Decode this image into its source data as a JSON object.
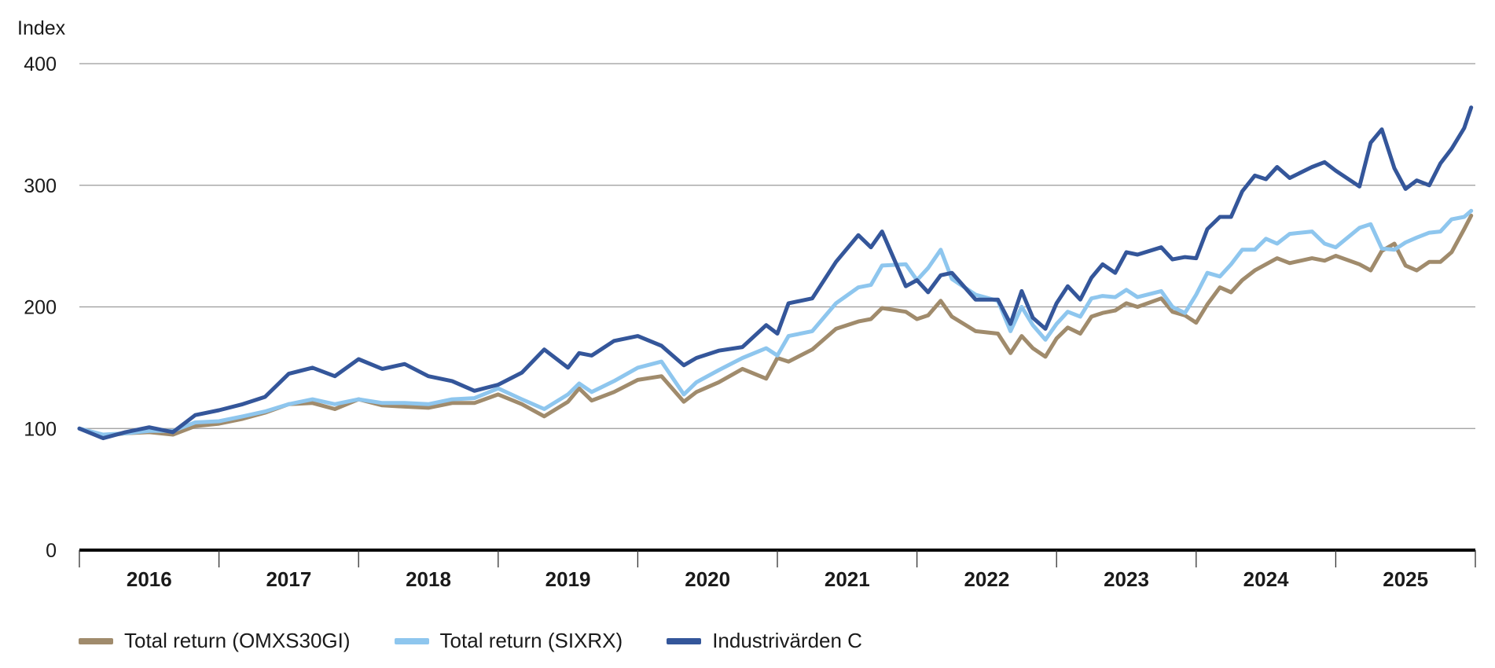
{
  "chart_data": {
    "type": "line",
    "ylabel": "Index",
    "ylim": [
      0,
      400
    ],
    "yticks": [
      "0",
      "100",
      "200",
      "300",
      "400"
    ],
    "ytick_values": [
      0,
      100,
      200,
      300,
      400
    ],
    "xlim": [
      2016.0,
      2026.0
    ],
    "xticks": [
      "2016",
      "2017",
      "2018",
      "2019",
      "2020",
      "2021",
      "2022",
      "2023",
      "2024",
      "2025"
    ],
    "grid": true,
    "legend_position": "bottom-left",
    "x": [
      2016.0,
      2016.17,
      2016.33,
      2016.5,
      2016.67,
      2016.83,
      2017.0,
      2017.17,
      2017.33,
      2017.5,
      2017.67,
      2017.83,
      2018.0,
      2018.17,
      2018.33,
      2018.5,
      2018.67,
      2018.83,
      2019.0,
      2019.17,
      2019.33,
      2019.5,
      2019.58,
      2019.67,
      2019.83,
      2020.0,
      2020.17,
      2020.33,
      2020.42,
      2020.58,
      2020.75,
      2020.92,
      2021.0,
      2021.08,
      2021.25,
      2021.42,
      2021.58,
      2021.67,
      2021.75,
      2021.92,
      2022.0,
      2022.08,
      2022.17,
      2022.25,
      2022.42,
      2022.58,
      2022.67,
      2022.75,
      2022.83,
      2022.92,
      2023.0,
      2023.08,
      2023.17,
      2023.25,
      2023.33,
      2023.42,
      2023.5,
      2023.58,
      2023.75,
      2023.83,
      2023.92,
      2024.0,
      2024.08,
      2024.17,
      2024.25,
      2024.33,
      2024.42,
      2024.5,
      2024.58,
      2024.67,
      2024.83,
      2024.92,
      2025.0,
      2025.17,
      2025.25,
      2025.33,
      2025.42,
      2025.5,
      2025.58,
      2025.67,
      2025.75,
      2025.83,
      2025.92,
      2025.97
    ],
    "series": [
      {
        "name": "Total return (OMXS30GI)",
        "color": "#a08b6c",
        "values": [
          100,
          94,
          96,
          97,
          95,
          102,
          104,
          108,
          113,
          120,
          121,
          116,
          124,
          119,
          118,
          117,
          121,
          121,
          128,
          120,
          110,
          122,
          133,
          123,
          130,
          140,
          143,
          122,
          130,
          138,
          149,
          141,
          158,
          155,
          165,
          182,
          188,
          190,
          199,
          196,
          190,
          193,
          205,
          192,
          180,
          178,
          162,
          176,
          166,
          159,
          174,
          183,
          178,
          192,
          195,
          197,
          203,
          200,
          207,
          196,
          193,
          187,
          202,
          216,
          212,
          222,
          230,
          235,
          240,
          236,
          240,
          238,
          242,
          235,
          230,
          246,
          252,
          234,
          230,
          237,
          237,
          245,
          264,
          275
        ]
      },
      {
        "name": "Total return (SIXRX)",
        "color": "#8ec6ee",
        "values": [
          100,
          95,
          96,
          98,
          98,
          105,
          106,
          110,
          114,
          120,
          124,
          120,
          124,
          121,
          121,
          120,
          124,
          125,
          133,
          124,
          116,
          128,
          137,
          130,
          139,
          150,
          155,
          128,
          138,
          148,
          158,
          166,
          160,
          176,
          180,
          203,
          216,
          218,
          234,
          235,
          222,
          232,
          247,
          223,
          210,
          205,
          180,
          200,
          185,
          173,
          186,
          196,
          192,
          207,
          209,
          208,
          214,
          208,
          213,
          200,
          195,
          210,
          228,
          225,
          235,
          247,
          247,
          256,
          252,
          260,
          262,
          252,
          249,
          265,
          268,
          248,
          247,
          253,
          257,
          261,
          262,
          272,
          274,
          279
        ]
      },
      {
        "name": "Industrivärden C",
        "color": "#34569a",
        "values": [
          100,
          92,
          97,
          101,
          97,
          111,
          115,
          120,
          126,
          145,
          150,
          143,
          157,
          149,
          153,
          143,
          139,
          131,
          136,
          146,
          165,
          150,
          162,
          160,
          172,
          176,
          168,
          152,
          158,
          164,
          167,
          185,
          178,
          203,
          207,
          237,
          259,
          249,
          262,
          217,
          222,
          212,
          226,
          228,
          206,
          206,
          186,
          213,
          191,
          182,
          203,
          217,
          206,
          224,
          235,
          228,
          245,
          243,
          249,
          239,
          241,
          240,
          264,
          274,
          274,
          295,
          308,
          305,
          315,
          306,
          315,
          319,
          312,
          299,
          335,
          346,
          314,
          297,
          304,
          300,
          318,
          330,
          347,
          364
        ]
      }
    ]
  }
}
